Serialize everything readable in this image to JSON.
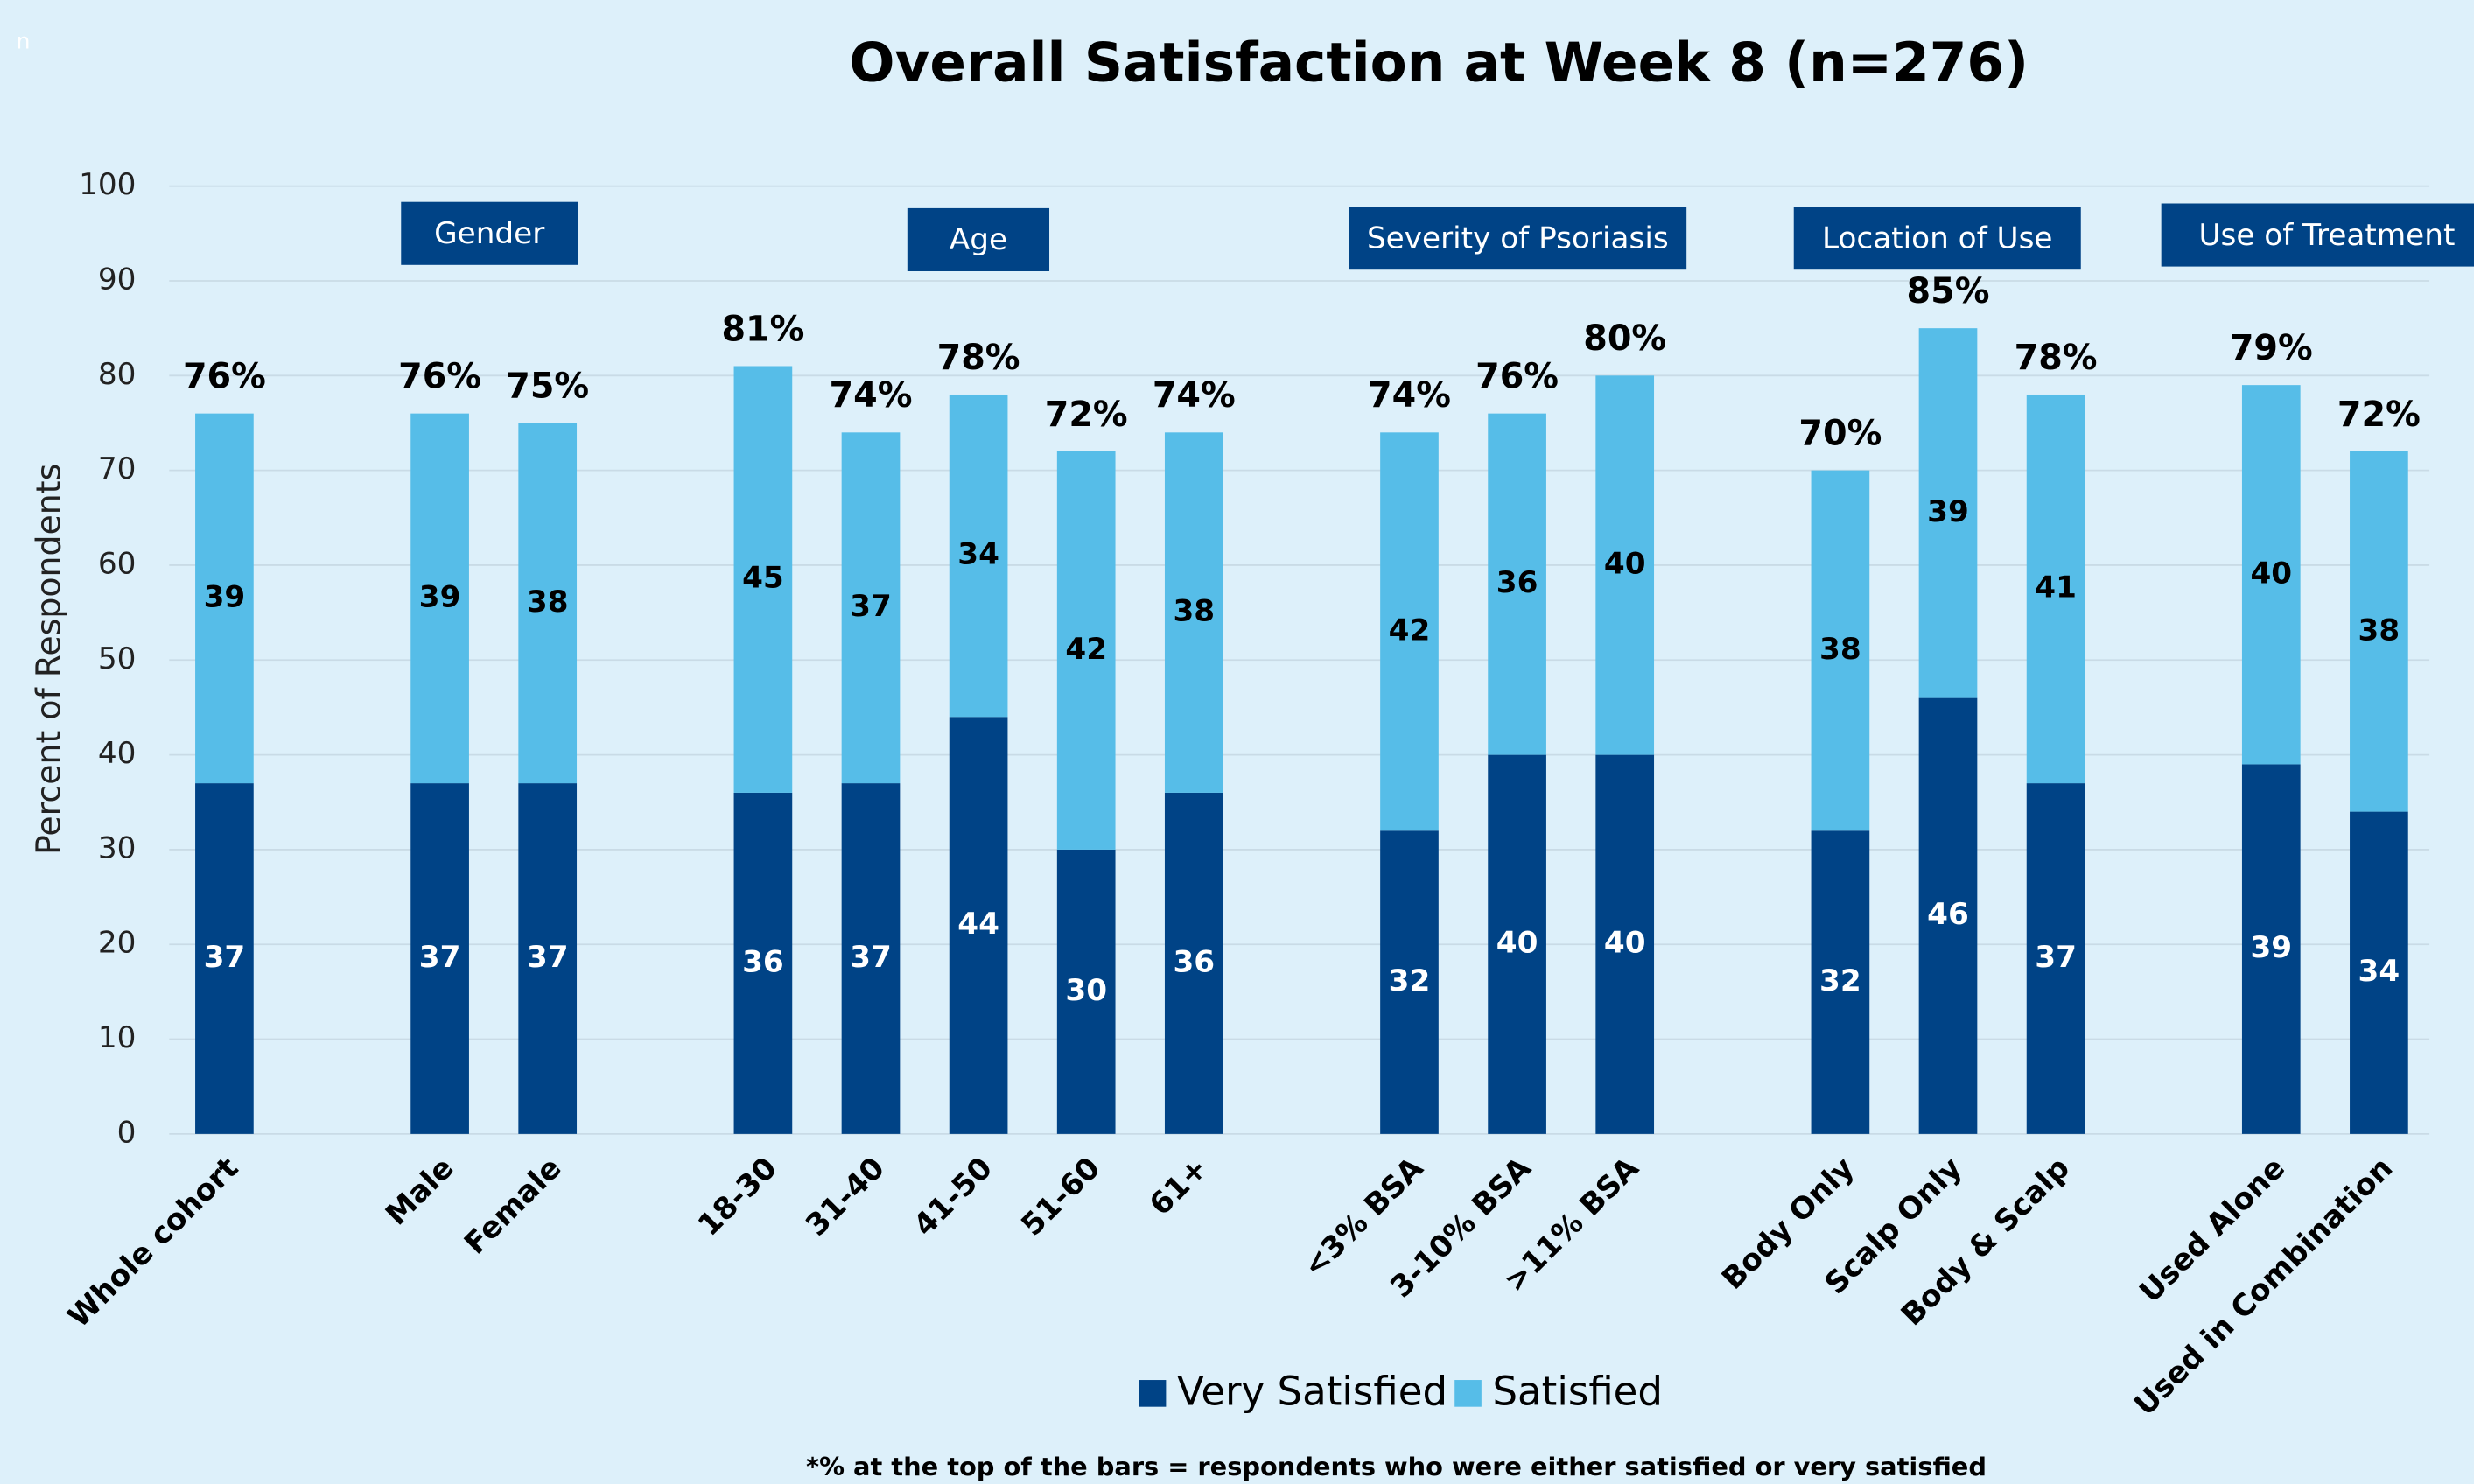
{
  "chart_data": {
    "type": "stacked_bar",
    "title": "Overall Satisfaction at Week 8 (n=276)",
    "corner_text": "n",
    "y_label": "Percent of Respondents",
    "categories": [
      "Whole cohort",
      null,
      "Male",
      "Female",
      null,
      "18-30",
      "31-40",
      "41-50",
      "51-60",
      "61+",
      null,
      "<3% BSA",
      "3-10% BSA",
      ">11% BSA",
      null,
      "Body Only",
      "Scalp Only",
      "Body & Scalp",
      null,
      "Used Alone",
      "Used in Combination"
    ],
    "series": [
      {
        "name": "Very Satisfied",
        "color": "#004386",
        "values": [
          37,
          null,
          37,
          37,
          null,
          36,
          37,
          44,
          30,
          36,
          null,
          32,
          40,
          40,
          null,
          32,
          46,
          37,
          null,
          39,
          34
        ]
      },
      {
        "name": "Satisfied",
        "color": "#56bde8",
        "values": [
          39,
          null,
          39,
          38,
          null,
          45,
          37,
          34,
          42,
          38,
          null,
          42,
          36,
          40,
          null,
          38,
          39,
          41,
          null,
          40,
          38
        ]
      }
    ],
    "total_labels": [
      "76%",
      null,
      "76%",
      "75%",
      null,
      "81%",
      "74%",
      "78%",
      "72%",
      "74%",
      null,
      "74%",
      "76%",
      "80%",
      null,
      "70%",
      "85%",
      "78%",
      null,
      "79%",
      "72%"
    ],
    "group_labels": [
      "Gender",
      "Age",
      "Severity of Psoriasis",
      "Location of Use",
      "Use of Treatment"
    ],
    "footnote": "*% at the top of the bars = respondents who were either satisfied or very satisfied",
    "ylim": [
      0,
      100
    ],
    "yticks": [
      0,
      10,
      20,
      30,
      40,
      50,
      60,
      70,
      80,
      90,
      100
    ],
    "grid": true,
    "legend": "bottom"
  }
}
